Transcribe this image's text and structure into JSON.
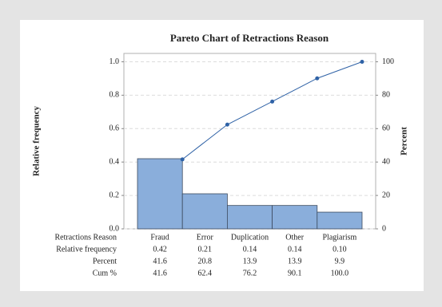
{
  "chart_data": {
    "type": "pareto",
    "title": "Pareto Chart of Retractions Reason",
    "ylabel": "Relative frequency",
    "y2label": "Percent",
    "xlabel": "Retractions Reason",
    "categories": [
      "Fraud",
      "Error",
      "Duplication",
      "Other",
      "Plagiarism"
    ],
    "series": [
      {
        "name": "Relative frequency",
        "color": "#8aaedb",
        "values": [
          0.42,
          0.21,
          0.14,
          0.14,
          0.1
        ],
        "value_labels": [
          "0.42",
          "0.21",
          "0.14",
          "0.14",
          "0.10"
        ]
      },
      {
        "name": "Percent",
        "values": [
          41.6,
          20.8,
          13.9,
          13.9,
          9.9
        ]
      },
      {
        "name": "Cum %",
        "color": "#2f62a6",
        "axis": "y2",
        "values": [
          41.6,
          62.4,
          76.2,
          90.1,
          100
        ],
        "value_labels": [
          "41.6",
          "62.4",
          "76.2",
          "90.1",
          "100.0"
        ]
      }
    ],
    "ylim": [
      0,
      1.05
    ],
    "yticks": [
      {
        "value": 0,
        "label": "0.0"
      },
      0.2,
      0.4,
      0.6,
      0.8,
      {
        "value": 1,
        "label": "1.0"
      }
    ],
    "y2lim": [
      0,
      105
    ],
    "y2ticks": [
      0,
      20,
      40,
      60,
      80,
      100
    ],
    "grid": true
  }
}
